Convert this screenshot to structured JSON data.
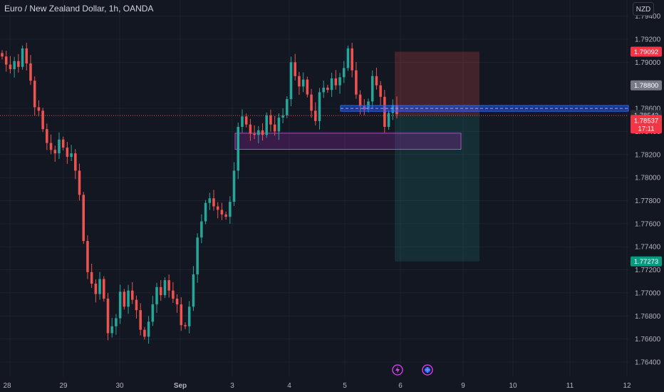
{
  "header": {
    "title": "Euro / New Zealand Dollar, 1h, OANDA",
    "currency": "NZD"
  },
  "colors": {
    "background": "#131722",
    "grid": "#1e222d",
    "up": "#26a69a",
    "down": "#ef5350",
    "axis_text": "#b2b5be",
    "stop_zone": "#ef5350",
    "target_zone": "#26a69a",
    "purple_zone": "#9c27b0",
    "blue_zone": "#2962ff"
  },
  "chart_data": {
    "type": "candlestick",
    "timeframe": "1h",
    "title": "Euro / New Zealand Dollar, 1h, OANDA",
    "x_tick_labels": [
      "28",
      "29",
      "30",
      "Sep",
      "3",
      "4",
      "5",
      "6",
      "9",
      "10",
      "11",
      "12"
    ],
    "y_ticks": [
      "1.79400",
      "1.79200",
      "1.79000",
      "1.78600",
      "1.78400",
      "1.78200",
      "1.78000",
      "1.77800",
      "1.77600",
      "1.77400",
      "1.77200",
      "1.77000",
      "1.76800",
      "1.76600",
      "1.76400"
    ],
    "ylim": [
      1.7627,
      1.7954
    ],
    "grid": true,
    "price_path": [
      [
        "28",
        1.7905
      ],
      [
        "28",
        1.7898
      ],
      [
        "28",
        1.7894
      ],
      [
        "28",
        1.7901
      ],
      [
        "28",
        1.7896
      ],
      [
        "28",
        1.7912
      ],
      [
        "28",
        1.7899
      ],
      [
        "28",
        1.7884
      ],
      [
        "28",
        1.7861
      ],
      [
        "28",
        1.7858
      ],
      [
        "28",
        1.7842
      ],
      [
        "28",
        1.783
      ],
      [
        "28",
        1.7824
      ],
      [
        "28",
        1.7821
      ],
      [
        "29",
        1.7833
      ],
      [
        "29",
        1.7826
      ],
      [
        "29",
        1.7818
      ],
      [
        "29",
        1.7821
      ],
      [
        "29",
        1.7806
      ],
      [
        "29",
        1.7785
      ],
      [
        "29",
        1.7745
      ],
      [
        "29",
        1.7718
      ],
      [
        "29",
        1.7708
      ],
      [
        "29",
        1.7699
      ],
      [
        "29",
        1.7712
      ],
      [
        "29",
        1.7695
      ],
      [
        "29",
        1.7665
      ],
      [
        "29",
        1.7671
      ],
      [
        "30",
        1.7678
      ],
      [
        "30",
        1.7701
      ],
      [
        "30",
        1.7688
      ],
      [
        "30",
        1.7702
      ],
      [
        "30",
        1.7694
      ],
      [
        "30",
        1.7685
      ],
      [
        "30",
        1.7668
      ],
      [
        "30",
        1.7662
      ],
      [
        "30",
        1.7675
      ],
      [
        "30",
        1.769
      ],
      [
        "30",
        1.7705
      ],
      [
        "30",
        1.7698
      ],
      [
        "30",
        1.7711
      ],
      [
        "30",
        1.7702
      ],
      [
        "Sep",
        1.7695
      ],
      [
        "Sep",
        1.769
      ],
      [
        "Sep",
        1.7672
      ],
      [
        "Sep",
        1.7671
      ],
      [
        "Sep",
        1.7688
      ],
      [
        "Sep",
        1.7716
      ],
      [
        "Sep",
        1.7748
      ],
      [
        "Sep",
        1.7762
      ],
      [
        "Sep",
        1.7778
      ],
      [
        "Sep",
        1.7782
      ],
      [
        "Sep",
        1.7775
      ],
      [
        "Sep",
        1.7772
      ],
      [
        "Sep",
        1.7768
      ],
      [
        "Sep",
        1.7766
      ],
      [
        "3",
        1.7779
      ],
      [
        "3",
        1.7806
      ],
      [
        "3",
        1.7844
      ],
      [
        "3",
        1.7853
      ],
      [
        "3",
        1.7846
      ],
      [
        "3",
        1.7838
      ],
      [
        "3",
        1.7837
      ],
      [
        "3",
        1.7841
      ],
      [
        "3",
        1.7837
      ],
      [
        "3",
        1.7854
      ],
      [
        "3",
        1.7846
      ],
      [
        "3",
        1.784
      ],
      [
        "3",
        1.7852
      ],
      [
        "3",
        1.7854
      ],
      [
        "4",
        1.7868
      ],
      [
        "4",
        1.79
      ],
      [
        "4",
        1.7888
      ],
      [
        "4",
        1.7879
      ],
      [
        "4",
        1.7885
      ],
      [
        "4",
        1.7872
      ],
      [
        "4",
        1.7858
      ],
      [
        "4",
        1.7849
      ],
      [
        "4",
        1.7874
      ],
      [
        "4",
        1.7878
      ],
      [
        "4",
        1.7876
      ],
      [
        "4",
        1.7886
      ],
      [
        "4",
        1.788
      ],
      [
        "4",
        1.7887
      ],
      [
        "5",
        1.7895
      ],
      [
        "5",
        1.7912
      ],
      [
        "5",
        1.7893
      ],
      [
        "5",
        1.7872
      ],
      [
        "5",
        1.7862
      ],
      [
        "5",
        1.7859
      ],
      [
        "5",
        1.7866
      ],
      [
        "5",
        1.7888
      ],
      [
        "5",
        1.788
      ],
      [
        "5",
        1.787
      ],
      [
        "5",
        1.7844
      ],
      [
        "5",
        1.7856
      ],
      [
        "5",
        1.7863
      ],
      [
        "5",
        1.7855
      ]
    ],
    "current_price": 1.78537,
    "current_price_label": "1.78537",
    "countdown_label": "17:11",
    "drawings": {
      "stop_zone": {
        "top": 1.79092,
        "bottom": 1.78542
      },
      "target_zone": {
        "top": 1.78542,
        "bottom": 1.77273
      },
      "purple_zone": {
        "top": 1.78385,
        "bottom": 1.78245
      },
      "blue_zone": {
        "top": 1.78625,
        "bottom": 1.78575
      },
      "dotted_line": 1.78538
    },
    "price_tags": [
      {
        "label": "1.79092",
        "value": 1.79092,
        "style": "red"
      },
      {
        "label": "1.78800",
        "value": 1.788,
        "style": "gray"
      },
      {
        "label": "1.78542",
        "value": 1.78542,
        "style": "dark"
      },
      {
        "label": "1.77273",
        "value": 1.77273,
        "style": "teal"
      }
    ]
  },
  "events": [
    {
      "name": "lightning-event-icon"
    },
    {
      "name": "globe-event-icon"
    }
  ]
}
